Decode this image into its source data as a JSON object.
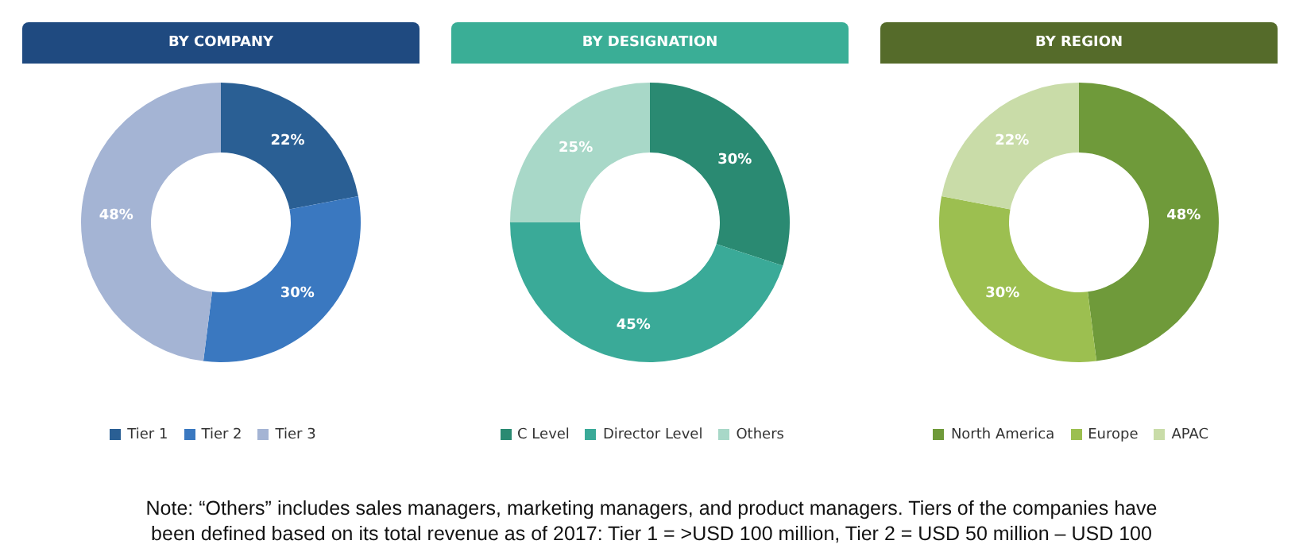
{
  "chart_data": [
    {
      "type": "donut",
      "title": "BY COMPANY",
      "categories": [
        "Tier 1",
        "Tier 2",
        "Tier 3"
      ],
      "values": [
        22,
        30,
        48
      ],
      "value_labels": [
        "22%",
        "30%",
        "48%"
      ],
      "colors": [
        "#2a5f94",
        "#3a78c0",
        "#a4b4d4"
      ],
      "legend": "bottom"
    },
    {
      "type": "donut",
      "title": "BY DESIGNATION",
      "categories": [
        "C Level",
        "Director Level",
        "Others"
      ],
      "values": [
        30,
        45,
        25
      ],
      "value_labels": [
        "30%",
        "45%",
        "25%"
      ],
      "colors": [
        "#2a8a72",
        "#3aaa98",
        "#a8d8c8"
      ],
      "legend": "bottom"
    },
    {
      "type": "donut",
      "title": "BY REGION",
      "categories": [
        "North America",
        "Europe",
        "APAC"
      ],
      "values": [
        48,
        30,
        22
      ],
      "value_labels": [
        "48%",
        "30%",
        "22%"
      ],
      "colors": [
        "#6f9a3a",
        "#9cbf50",
        "#c9dca8"
      ],
      "legend": "bottom",
      "annotations": [
        "Note: “Others” includes sales managers, marketing managers, and product managers. Tiers of the companies have",
        "been defined based on its total revenue as of 2017: Tier 1 = >USD 100 million, Tier 2 = USD 50 million – USD 100"
      ]
    }
  ]
}
